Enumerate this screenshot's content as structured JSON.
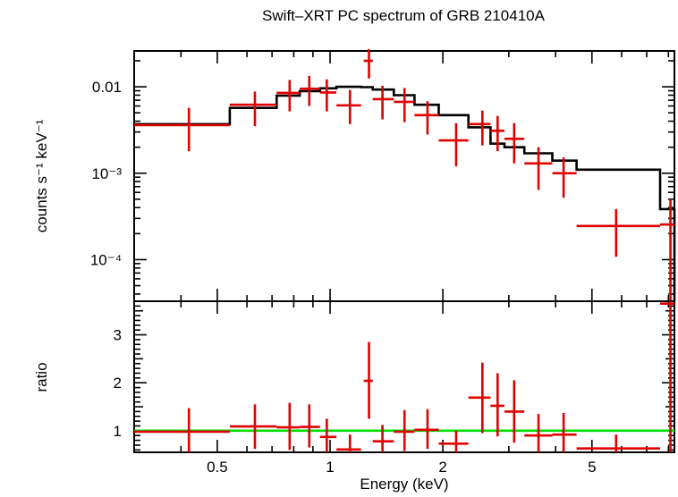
{
  "chart_data": {
    "type": "scatter",
    "title": "Swift–XRT PC spectrum of GRB 210410A",
    "xlabel": "Energy (keV)",
    "xscale": "log",
    "xlim": [
      0.3,
      8.3
    ],
    "x_ticks": [
      {
        "value": 0.5,
        "label": "0.5"
      },
      {
        "value": 1,
        "label": "1"
      },
      {
        "value": 2,
        "label": "2"
      },
      {
        "value": 5,
        "label": "5"
      }
    ],
    "panels": [
      {
        "name": "spectrum",
        "ylabel": "counts s⁻¹ keV⁻¹",
        "yscale": "log",
        "ylim": [
          3.3e-05,
          0.026
        ],
        "y_ticks": [
          {
            "value": 0.01,
            "label": "0.01"
          },
          {
            "value": 0.001,
            "label": "10⁻³"
          },
          {
            "value": 0.0001,
            "label": "10⁻⁴"
          }
        ],
        "data_points": [
          {
            "x": 0.42,
            "xlo": 0.3,
            "xhi": 0.54,
            "y": 0.0036,
            "ylo": 0.0018,
            "yhi": 0.0057
          },
          {
            "x": 0.63,
            "xlo": 0.54,
            "xhi": 0.72,
            "y": 0.0062,
            "ylo": 0.0035,
            "yhi": 0.0088
          },
          {
            "x": 0.78,
            "xlo": 0.72,
            "xhi": 0.83,
            "y": 0.0085,
            "ylo": 0.0052,
            "yhi": 0.012
          },
          {
            "x": 0.88,
            "xlo": 0.83,
            "xhi": 0.94,
            "y": 0.0095,
            "ylo": 0.006,
            "yhi": 0.0134
          },
          {
            "x": 0.98,
            "xlo": 0.94,
            "xhi": 1.04,
            "y": 0.0086,
            "ylo": 0.0052,
            "yhi": 0.0122
          },
          {
            "x": 1.13,
            "xlo": 1.04,
            "xhi": 1.21,
            "y": 0.0061,
            "ylo": 0.0037,
            "yhi": 0.0092
          },
          {
            "x": 1.27,
            "xlo": 1.23,
            "xhi": 1.3,
            "y": 0.02,
            "ylo": 0.0125,
            "yhi": 0.03
          },
          {
            "x": 1.38,
            "xlo": 1.3,
            "xhi": 1.48,
            "y": 0.0072,
            "ylo": 0.0042,
            "yhi": 0.0103
          },
          {
            "x": 1.58,
            "xlo": 1.48,
            "xhi": 1.68,
            "y": 0.0067,
            "ylo": 0.0039,
            "yhi": 0.0097
          },
          {
            "x": 1.82,
            "xlo": 1.68,
            "xhi": 1.95,
            "y": 0.0047,
            "ylo": 0.0028,
            "yhi": 0.0068
          },
          {
            "x": 2.17,
            "xlo": 1.95,
            "xhi": 2.34,
            "y": 0.0024,
            "ylo": 0.0012,
            "yhi": 0.0038
          },
          {
            "x": 2.55,
            "xlo": 2.34,
            "xhi": 2.68,
            "y": 0.0037,
            "ylo": 0.0021,
            "yhi": 0.0053
          },
          {
            "x": 2.8,
            "xlo": 2.68,
            "xhi": 2.92,
            "y": 0.0031,
            "ylo": 0.0018,
            "yhi": 0.0046
          },
          {
            "x": 3.1,
            "xlo": 2.92,
            "xhi": 3.3,
            "y": 0.0025,
            "ylo": 0.0013,
            "yhi": 0.0038
          },
          {
            "x": 3.6,
            "xlo": 3.3,
            "xhi": 3.92,
            "y": 0.0013,
            "ylo": 0.00064,
            "yhi": 0.002
          },
          {
            "x": 4.2,
            "xlo": 3.92,
            "xhi": 4.55,
            "y": 0.001,
            "ylo": 0.00052,
            "yhi": 0.00152
          },
          {
            "x": 5.8,
            "xlo": 4.55,
            "xhi": 7.6,
            "y": 0.000245,
            "ylo": 0.000108,
            "yhi": 0.000385
          },
          {
            "x": 8.1,
            "xlo": 7.6,
            "xhi": 8.3,
            "y": 0.000255,
            "ylo": 3.3e-05,
            "yhi": 0.0005
          }
        ],
        "model_steps": [
          {
            "x0": 0.3,
            "x1": 0.54,
            "y": 0.0037
          },
          {
            "x0": 0.54,
            "x1": 0.72,
            "y": 0.0057
          },
          {
            "x0": 0.72,
            "x1": 0.83,
            "y": 0.0079
          },
          {
            "x0": 0.83,
            "x1": 0.94,
            "y": 0.0089
          },
          {
            "x0": 0.94,
            "x1": 1.04,
            "y": 0.0096
          },
          {
            "x0": 1.04,
            "x1": 1.21,
            "y": 0.01
          },
          {
            "x0": 1.21,
            "x1": 1.3,
            "y": 0.0099
          },
          {
            "x0": 1.3,
            "x1": 1.48,
            "y": 0.0093
          },
          {
            "x0": 1.48,
            "x1": 1.68,
            "y": 0.008
          },
          {
            "x0": 1.68,
            "x1": 1.95,
            "y": 0.0062
          },
          {
            "x0": 1.95,
            "x1": 2.34,
            "y": 0.0047
          },
          {
            "x0": 2.34,
            "x1": 2.68,
            "y": 0.0034
          },
          {
            "x0": 2.68,
            "x1": 2.92,
            "y": 0.0022
          },
          {
            "x0": 2.92,
            "x1": 3.3,
            "y": 0.002
          },
          {
            "x0": 3.3,
            "x1": 3.92,
            "y": 0.0017
          },
          {
            "x0": 3.92,
            "x1": 4.55,
            "y": 0.0014
          },
          {
            "x0": 4.55,
            "x1": 7.6,
            "y": 0.0011
          },
          {
            "x0": 7.6,
            "x1": 8.3,
            "y": 0.000385
          },
          {
            "x0": 8.3,
            "x1": 8.3,
            "y": 6.8e-05
          }
        ]
      },
      {
        "name": "ratio",
        "ylabel": "ratio",
        "yscale": "linear",
        "ylim": [
          0.55,
          3.7
        ],
        "y_ticks": [
          {
            "value": 1,
            "label": "1"
          },
          {
            "value": 2,
            "label": "2"
          },
          {
            "value": 3,
            "label": "3"
          }
        ],
        "reference_line": {
          "y": 1,
          "color": "#00dd00"
        },
        "data_points": [
          {
            "x": 0.42,
            "xlo": 0.3,
            "xhi": 0.54,
            "y": 0.98,
            "ylo": 0.5,
            "yhi": 1.47
          },
          {
            "x": 0.63,
            "xlo": 0.54,
            "xhi": 0.72,
            "y": 1.09,
            "ylo": 0.62,
            "yhi": 1.55
          },
          {
            "x": 0.78,
            "xlo": 0.72,
            "xhi": 0.83,
            "y": 1.07,
            "ylo": 0.6,
            "yhi": 1.58
          },
          {
            "x": 0.88,
            "xlo": 0.83,
            "xhi": 0.94,
            "y": 1.08,
            "ylo": 0.65,
            "yhi": 1.55
          },
          {
            "x": 0.98,
            "xlo": 0.94,
            "xhi": 1.04,
            "y": 0.87,
            "ylo": 0.55,
            "yhi": 1.25
          },
          {
            "x": 1.13,
            "xlo": 1.04,
            "xhi": 1.21,
            "y": 0.61,
            "ylo": 0.55,
            "yhi": 0.92
          },
          {
            "x": 1.27,
            "xlo": 1.23,
            "xhi": 1.3,
            "y": 2.04,
            "ylo": 1.25,
            "yhi": 2.85
          },
          {
            "x": 1.38,
            "xlo": 1.3,
            "xhi": 1.48,
            "y": 0.78,
            "ylo": 0.55,
            "yhi": 1.12
          },
          {
            "x": 1.58,
            "xlo": 1.48,
            "xhi": 1.68,
            "y": 0.98,
            "ylo": 0.58,
            "yhi": 1.43
          },
          {
            "x": 1.82,
            "xlo": 1.68,
            "xhi": 1.95,
            "y": 1.02,
            "ylo": 0.62,
            "yhi": 1.45
          },
          {
            "x": 2.17,
            "xlo": 1.95,
            "xhi": 2.34,
            "y": 0.73,
            "ylo": 0.55,
            "yhi": 1.0
          },
          {
            "x": 2.55,
            "xlo": 2.34,
            "xhi": 2.68,
            "y": 1.69,
            "ylo": 0.95,
            "yhi": 2.42
          },
          {
            "x": 2.8,
            "xlo": 2.68,
            "xhi": 2.92,
            "y": 1.52,
            "ylo": 0.88,
            "yhi": 2.2
          },
          {
            "x": 3.1,
            "xlo": 2.92,
            "xhi": 3.3,
            "y": 1.4,
            "ylo": 0.75,
            "yhi": 2.05
          },
          {
            "x": 3.6,
            "xlo": 3.3,
            "xhi": 3.92,
            "y": 0.9,
            "ylo": 0.55,
            "yhi": 1.35
          },
          {
            "x": 4.2,
            "xlo": 3.92,
            "xhi": 4.55,
            "y": 0.92,
            "ylo": 0.55,
            "yhi": 1.37
          },
          {
            "x": 5.8,
            "xlo": 4.55,
            "xhi": 7.6,
            "y": 0.63,
            "ylo": 0.55,
            "yhi": 0.92
          },
          {
            "x": 8.1,
            "xlo": 7.6,
            "xhi": 8.3,
            "y": 3.65,
            "ylo": 0.55,
            "yhi": 3.7
          }
        ]
      }
    ]
  }
}
